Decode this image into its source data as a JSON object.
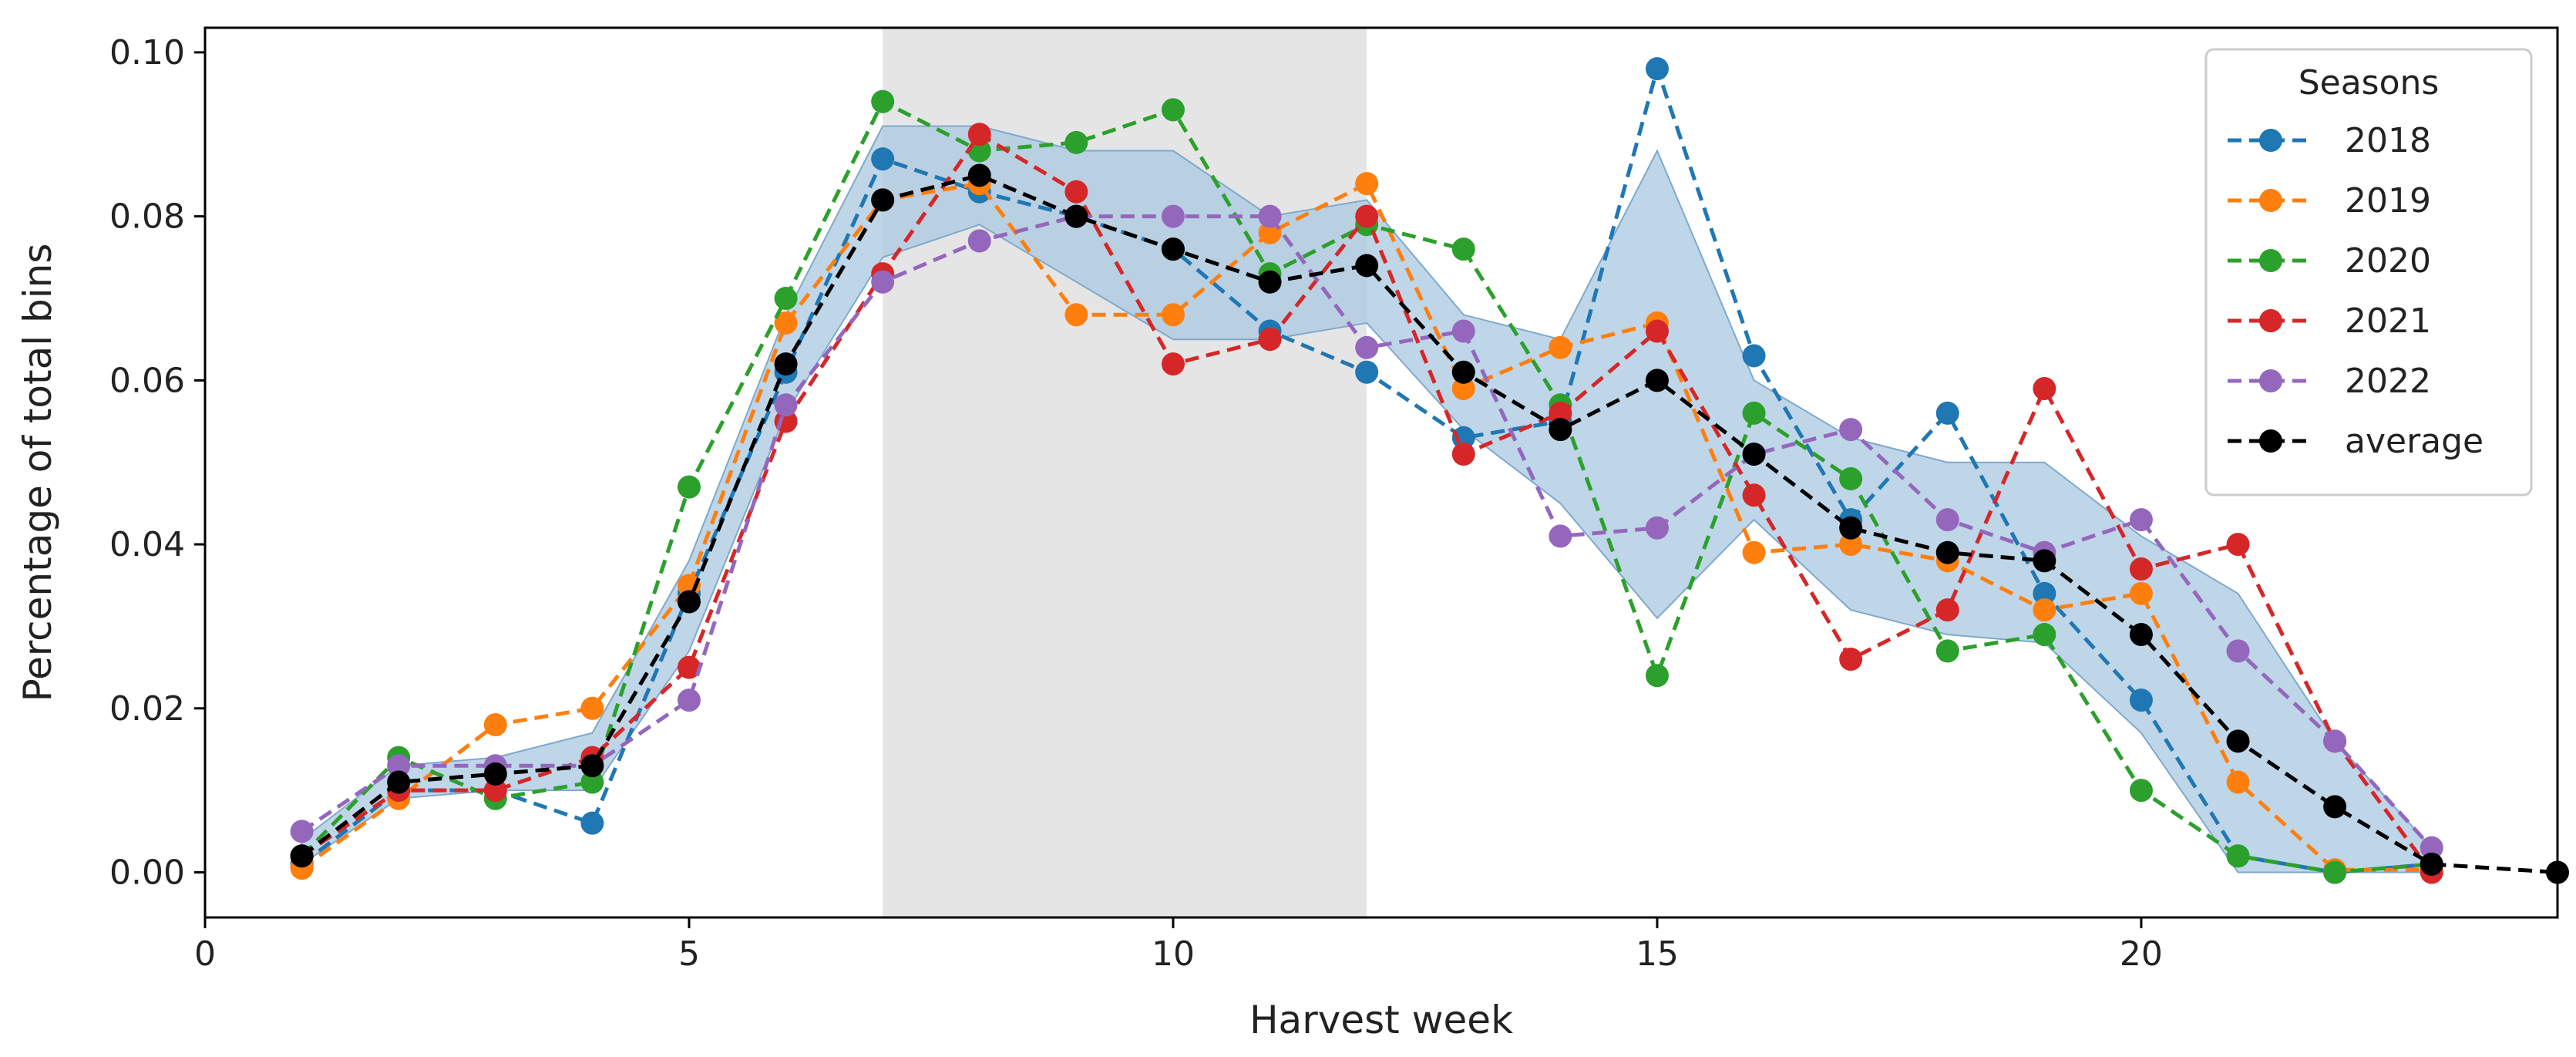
{
  "chart_data": {
    "type": "line",
    "title": "",
    "xlabel": "Harvest week",
    "ylabel": "Percentage of total bins",
    "xlim": [
      0,
      24.3
    ],
    "ylim": [
      -0.0055,
      0.103
    ],
    "xticks": [
      0,
      5,
      10,
      15,
      20
    ],
    "yticks": [
      0.0,
      0.02,
      0.04,
      0.06,
      0.08,
      0.1
    ],
    "ytick_labels": [
      "0.00",
      "0.02",
      "0.04",
      "0.06",
      "0.08",
      "0.10"
    ],
    "shaded_region": {
      "x_start": 7,
      "x_end": 12,
      "color": "#e5e5e5"
    },
    "band": {
      "color": "#a8c8e0",
      "x": [
        1,
        2,
        3,
        4,
        5,
        6,
        7,
        8,
        9,
        10,
        11,
        12,
        13,
        14,
        15,
        16,
        17,
        18,
        19,
        20,
        21,
        22,
        23
      ],
      "lower": [
        0.001,
        0.009,
        0.01,
        0.01,
        0.027,
        0.056,
        0.075,
        0.079,
        0.072,
        0.065,
        0.065,
        0.067,
        0.054,
        0.045,
        0.031,
        0.043,
        0.032,
        0.029,
        0.028,
        0.017,
        0.0,
        0.0,
        0.0
      ],
      "upper": [
        0.004,
        0.013,
        0.014,
        0.017,
        0.038,
        0.068,
        0.091,
        0.091,
        0.088,
        0.088,
        0.08,
        0.082,
        0.068,
        0.065,
        0.088,
        0.06,
        0.053,
        0.05,
        0.05,
        0.041,
        0.034,
        0.016,
        0.003
      ]
    },
    "series": [
      {
        "name": "2018",
        "color": "#1f77b4",
        "x": [
          1,
          2,
          3,
          4,
          5,
          6,
          7,
          8,
          9,
          10,
          11,
          12,
          13,
          14,
          15,
          16,
          17,
          18,
          19,
          20,
          21,
          22,
          23
        ],
        "values": [
          0.001,
          0.01,
          0.01,
          0.006,
          0.034,
          0.061,
          0.087,
          0.083,
          0.08,
          0.076,
          0.066,
          0.061,
          0.053,
          0.055,
          0.098,
          0.063,
          0.043,
          0.056,
          0.034,
          0.021,
          0.002,
          0.0,
          0.001
        ]
      },
      {
        "name": "2019",
        "color": "#ff7f0e",
        "x": [
          1,
          2,
          3,
          4,
          5,
          6,
          7,
          8,
          9,
          10,
          11,
          12,
          13,
          14,
          15,
          16,
          17,
          18,
          19,
          20,
          21,
          22,
          23
        ],
        "values": [
          0.0005,
          0.009,
          0.018,
          0.02,
          0.035,
          0.067,
          0.082,
          0.084,
          0.068,
          0.068,
          0.078,
          0.084,
          0.059,
          0.064,
          0.067,
          0.039,
          0.04,
          0.038,
          0.032,
          0.034,
          0.011,
          0.0003,
          0.0003
        ]
      },
      {
        "name": "2020",
        "color": "#2ca02c",
        "x": [
          1,
          2,
          3,
          4,
          5,
          6,
          7,
          8,
          9,
          10,
          11,
          12,
          13,
          14,
          15,
          16,
          17,
          18,
          19,
          20,
          21,
          22,
          23
        ],
        "values": [
          0.002,
          0.014,
          0.009,
          0.011,
          0.047,
          0.07,
          0.094,
          0.088,
          0.089,
          0.093,
          0.073,
          0.079,
          0.076,
          0.057,
          0.024,
          0.056,
          0.048,
          0.027,
          0.029,
          0.01,
          0.002,
          0.0,
          0.001
        ]
      },
      {
        "name": "2021",
        "color": "#d62728",
        "x": [
          1,
          2,
          3,
          4,
          5,
          6,
          7,
          8,
          9,
          10,
          11,
          12,
          13,
          14,
          15,
          16,
          17,
          18,
          19,
          20,
          21,
          22,
          23
        ],
        "values": [
          0.002,
          0.01,
          0.01,
          0.014,
          0.025,
          0.055,
          0.073,
          0.09,
          0.083,
          0.062,
          0.065,
          0.08,
          0.051,
          0.056,
          0.066,
          0.046,
          0.026,
          0.032,
          0.059,
          0.037,
          0.04,
          0.016,
          0.0
        ]
      },
      {
        "name": "2022",
        "color": "#9467bd",
        "x": [
          1,
          2,
          3,
          4,
          5,
          6,
          7,
          8,
          9,
          10,
          11,
          12,
          13,
          14,
          15,
          16,
          17,
          18,
          19,
          20,
          21,
          22,
          23
        ],
        "values": [
          0.005,
          0.013,
          0.013,
          0.013,
          0.021,
          0.057,
          0.072,
          0.077,
          0.08,
          0.08,
          0.08,
          0.064,
          0.066,
          0.041,
          0.042,
          0.051,
          0.054,
          0.043,
          0.039,
          0.043,
          0.027,
          0.016,
          0.003
        ]
      },
      {
        "name": "average",
        "color": "#000000",
        "x": [
          1,
          2,
          3,
          4,
          5,
          6,
          7,
          8,
          9,
          10,
          11,
          12,
          13,
          14,
          15,
          16,
          17,
          18,
          19,
          20,
          21,
          22,
          23,
          24.3
        ],
        "values": [
          0.002,
          0.011,
          0.012,
          0.013,
          0.033,
          0.062,
          0.082,
          0.085,
          0.08,
          0.076,
          0.072,
          0.074,
          0.061,
          0.054,
          0.06,
          0.051,
          0.042,
          0.039,
          0.038,
          0.029,
          0.016,
          0.008,
          0.001,
          0.0
        ]
      }
    ],
    "legend": {
      "title": "Seasons",
      "position": "top-right"
    },
    "grid": false
  }
}
